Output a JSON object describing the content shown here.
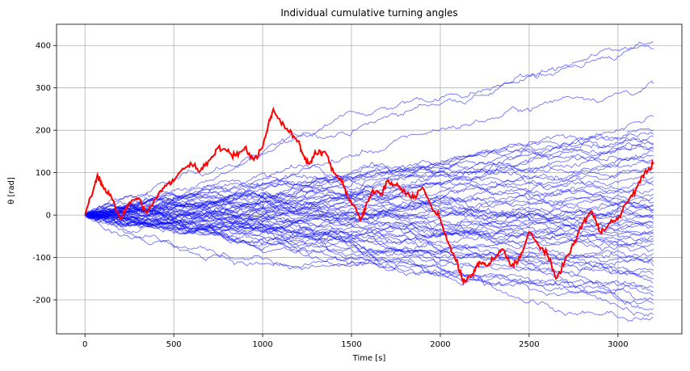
{
  "chart_data": {
    "type": "line",
    "title": "Individual cumulative turning angles",
    "xlabel": "Time [s]",
    "ylabel": "θ [rad]",
    "xlim": [
      -160,
      3360
    ],
    "ylim": [
      -280,
      450
    ],
    "xticks": [
      0,
      500,
      1000,
      1500,
      2000,
      2500,
      3000
    ],
    "yticks": [
      -200,
      -100,
      0,
      100,
      200,
      300,
      400
    ],
    "grid": true,
    "legend": "none",
    "colors": {
      "background": "#blue",
      "series": "#0000ff",
      "highlight": "#ff0000",
      "grid": "#b0b0b0"
    },
    "background_series": {
      "color": "#0000ff",
      "count": 60,
      "final_values": [
        408,
        392,
        310,
        232,
        200,
        190,
        185,
        170,
        165,
        160,
        155,
        150,
        140,
        130,
        120,
        110,
        100,
        90,
        80,
        70,
        60,
        50,
        40,
        30,
        25,
        20,
        15,
        10,
        5,
        0,
        -5,
        -10,
        -15,
        -20,
        -25,
        -30,
        -35,
        -40,
        -45,
        -50,
        -55,
        -60,
        -70,
        -80,
        -90,
        -100,
        -110,
        -120,
        -130,
        -140,
        -150,
        -160,
        -170,
        -180,
        -190,
        -200,
        -210,
        -220,
        -235,
        -242
      ]
    },
    "highlight_series": {
      "color": "#ff0000",
      "keypoints": [
        [
          0,
          0
        ],
        [
          50,
          65
        ],
        [
          70,
          95
        ],
        [
          100,
          70
        ],
        [
          150,
          40
        ],
        [
          200,
          -10
        ],
        [
          250,
          30
        ],
        [
          300,
          40
        ],
        [
          350,
          5
        ],
        [
          400,
          40
        ],
        [
          450,
          70
        ],
        [
          500,
          80
        ],
        [
          550,
          110
        ],
        [
          600,
          120
        ],
        [
          650,
          105
        ],
        [
          700,
          130
        ],
        [
          750,
          160
        ],
        [
          800,
          150
        ],
        [
          850,
          140
        ],
        [
          900,
          160
        ],
        [
          950,
          130
        ],
        [
          1000,
          160
        ],
        [
          1030,
          210
        ],
        [
          1060,
          250
        ],
        [
          1100,
          220
        ],
        [
          1150,
          195
        ],
        [
          1200,
          175
        ],
        [
          1230,
          140
        ],
        [
          1260,
          120
        ],
        [
          1300,
          145
        ],
        [
          1350,
          150
        ],
        [
          1400,
          100
        ],
        [
          1450,
          80
        ],
        [
          1480,
          40
        ],
        [
          1520,
          20
        ],
        [
          1550,
          -15
        ],
        [
          1580,
          20
        ],
        [
          1620,
          60
        ],
        [
          1670,
          50
        ],
        [
          1700,
          80
        ],
        [
          1750,
          70
        ],
        [
          1800,
          55
        ],
        [
          1850,
          40
        ],
        [
          1900,
          65
        ],
        [
          1950,
          20
        ],
        [
          2000,
          -10
        ],
        [
          2050,
          -70
        ],
        [
          2100,
          -120
        ],
        [
          2130,
          -160
        ],
        [
          2180,
          -140
        ],
        [
          2220,
          -110
        ],
        [
          2260,
          -120
        ],
        [
          2300,
          -105
        ],
        [
          2350,
          -80
        ],
        [
          2400,
          -120
        ],
        [
          2450,
          -100
        ],
        [
          2500,
          -40
        ],
        [
          2550,
          -70
        ],
        [
          2600,
          -90
        ],
        [
          2650,
          -150
        ],
        [
          2700,
          -110
        ],
        [
          2750,
          -70
        ],
        [
          2800,
          -20
        ],
        [
          2850,
          10
        ],
        [
          2900,
          -40
        ],
        [
          2950,
          -20
        ],
        [
          3000,
          -10
        ],
        [
          3050,
          30
        ],
        [
          3100,
          60
        ],
        [
          3150,
          100
        ],
        [
          3200,
          120
        ]
      ]
    }
  }
}
